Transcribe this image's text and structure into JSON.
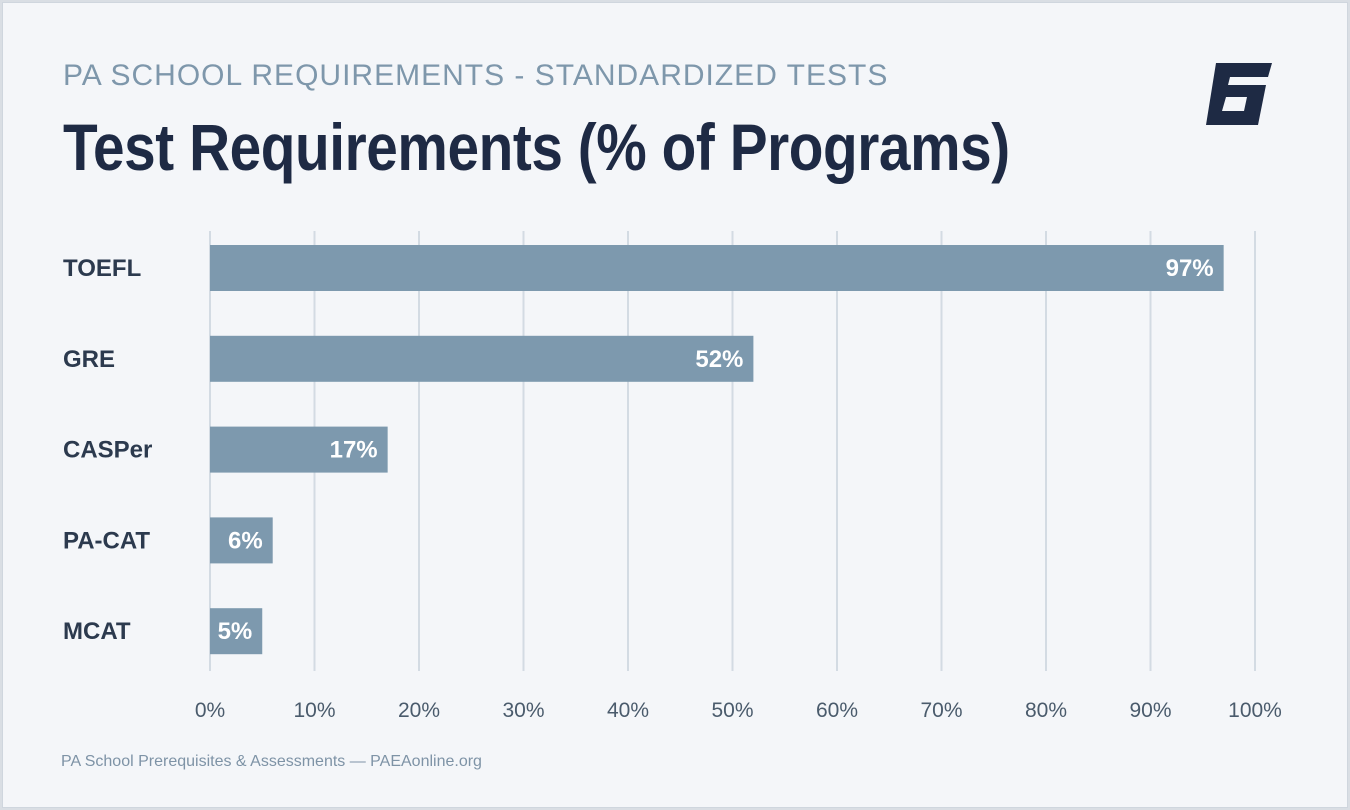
{
  "header": {
    "eyebrow": "PA SCHOOL REQUIREMENTS - STANDARDIZED TESTS",
    "title": "Test Requirements (% of Programs)"
  },
  "logo": {
    "icon": "brand-g-logo-icon",
    "color": "#1e2a44"
  },
  "footer": {
    "source": "PA School Prerequisites & Assessments — PAEAonline.org"
  },
  "colors": {
    "bar": "#7d99ae",
    "grid": "#d3dbe3",
    "background": "#f4f6f9"
  },
  "chart_data": {
    "type": "bar",
    "orientation": "horizontal",
    "title": "Test Requirements (% of Programs)",
    "categories": [
      "TOEFL",
      "GRE",
      "CASPer",
      "PA-CAT",
      "MCAT"
    ],
    "values": [
      97,
      52,
      17,
      6,
      5
    ],
    "data_labels": [
      "97%",
      "52%",
      "17%",
      "6%",
      "5%"
    ],
    "xlim": [
      0,
      100
    ],
    "x_ticks": [
      0,
      10,
      20,
      30,
      40,
      50,
      60,
      70,
      80,
      90,
      100
    ],
    "x_tick_labels": [
      "0%",
      "10%",
      "20%",
      "30%",
      "40%",
      "50%",
      "60%",
      "70%",
      "80%",
      "90%",
      "100%"
    ],
    "grid": "vertical",
    "legend": "none"
  }
}
